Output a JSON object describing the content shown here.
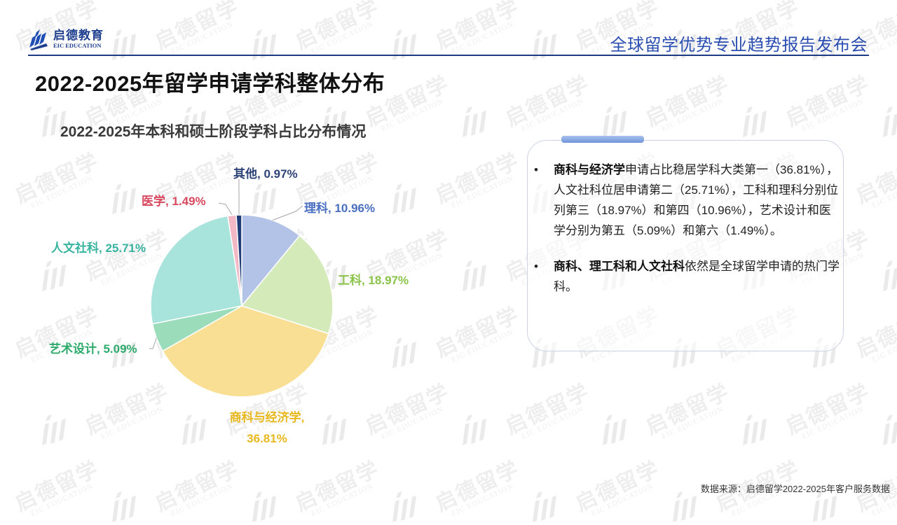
{
  "header": {
    "logo_cn": "启德教育",
    "logo_en": "EIC EDUCATION",
    "event_title": "全球留学优势专业趋势报告发布会",
    "rule_color": "#1d3a84",
    "title_color": "#2a4db0"
  },
  "page": {
    "title": "2022-2025年留学申请学科整体分布"
  },
  "watermark": {
    "cn": "启德留学",
    "en": "EIC EDUCATION"
  },
  "chart_data": {
    "type": "pie",
    "title": "2022-2025年本科和硕士阶段学科占比分布情况",
    "start_angle": "12 o'clock, clockwise",
    "categories": [
      "理科",
      "工科",
      "商科与经济学",
      "艺术设计",
      "人文社科",
      "医学",
      "其他"
    ],
    "values": [
      10.96,
      18.97,
      36.81,
      5.09,
      25.71,
      1.49,
      0.97
    ],
    "unit": "%",
    "slice_colors": [
      "#b3c3e8",
      "#d4eab9",
      "#f8df94",
      "#9bdcbb",
      "#a8e3dc",
      "#f2b8c6",
      "#1f3c78"
    ],
    "label_colors": [
      "#4a6fc1",
      "#8bc34a",
      "#e8b81f",
      "#2eaa6b",
      "#38b3a0",
      "#d8485e",
      "#2d4378"
    ],
    "labels": [
      {
        "text": "理科, 10.96%"
      },
      {
        "text": "工科, 18.97%"
      },
      {
        "line1": "商科与经济学,",
        "line2": "36.81%"
      },
      {
        "text": "艺术设计, 5.09%"
      },
      {
        "text": "人文社科, 25.71%"
      },
      {
        "text": "医学, 1.49%"
      },
      {
        "text": "其他, 0.97%"
      }
    ]
  },
  "summary": {
    "bullets": [
      {
        "bold": "商科与经济学",
        "text": "申请占比稳居学科大类第一（36.81%），人文社科位居申请第二（25.71%），工科和理科分别位列第三（18.97%）和第四（10.96%），艺术设计和医学分别为第五（5.09%）和第六（1.49%）。"
      },
      {
        "bold": "商科、理工科和人文社科",
        "text": "依然是全球留学申请的热门学科。"
      }
    ]
  },
  "footer": {
    "source": "数据来源：启德留学2022-2025年客户服务数据"
  }
}
